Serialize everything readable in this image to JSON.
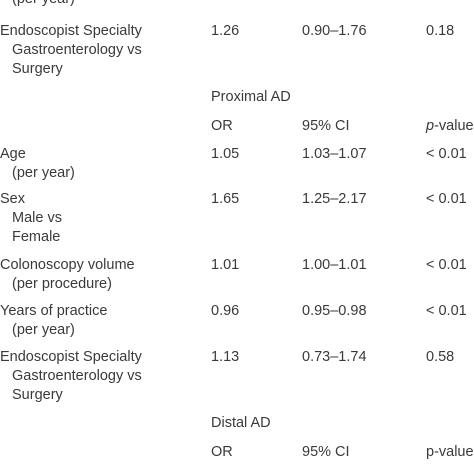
{
  "top_fragment": "(per year)",
  "block1": {
    "row": {
      "l1": "Endoscopist Specialty",
      "l2": "Gastroenterology vs",
      "l3": "Surgery",
      "or": "1.26",
      "ci": "0.90–1.76",
      "p": "0.18"
    }
  },
  "proximal": {
    "title": "Proximal AD",
    "h_or": "OR",
    "h_ci": "95% CI",
    "h_p_italic": "p",
    "h_p_rest": "-values",
    "age": {
      "l1": "Age",
      "l2": "(per year)",
      "or": "1.05",
      "ci": "1.03–1.07",
      "p": "< 0.01"
    },
    "sex": {
      "l1": "Sex",
      "l2": "Male vs",
      "l3": "Female",
      "or": "1.65",
      "ci": "1.25–2.17",
      "p": "< 0.01"
    },
    "vol": {
      "l1": "Colonoscopy volume",
      "l2": "(per procedure)",
      "or": "1.01",
      "ci": "1.00–1.01",
      "p": "< 0.01"
    },
    "yrs": {
      "l1": "Years of practice",
      "l2": "(per year)",
      "or": "0.96",
      "ci": "0.95–0.98",
      "p": "< 0.01"
    },
    "spec": {
      "l1": "Endoscopist Specialty",
      "l2": "Gastroenterology vs",
      "l3": "Surgery",
      "or": "1.13",
      "ci": "0.73–1.74",
      "p": "0.58"
    }
  },
  "distal": {
    "title": "Distal AD",
    "h_or": "OR",
    "h_ci": "95% CI",
    "h_p": "p-value"
  }
}
